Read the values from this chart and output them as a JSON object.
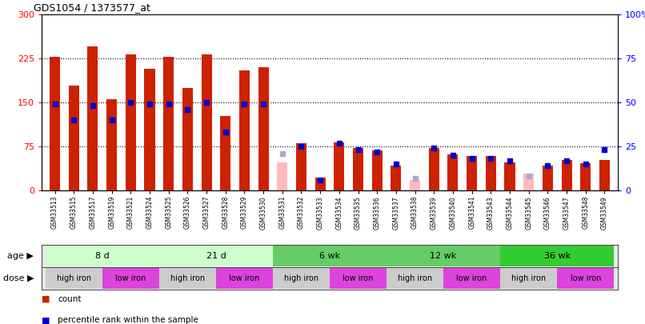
{
  "title": "GDS1054 / 1373577_at",
  "samples": [
    "GSM33513",
    "GSM33515",
    "GSM33517",
    "GSM33519",
    "GSM33521",
    "GSM33524",
    "GSM33525",
    "GSM33526",
    "GSM33527",
    "GSM33528",
    "GSM33529",
    "GSM33530",
    "GSM33531",
    "GSM33532",
    "GSM33533",
    "GSM33534",
    "GSM33535",
    "GSM33536",
    "GSM33537",
    "GSM33538",
    "GSM33539",
    "GSM33540",
    "GSM33541",
    "GSM33543",
    "GSM33544",
    "GSM33545",
    "GSM33546",
    "GSM33547",
    "GSM33548",
    "GSM33549"
  ],
  "count_values": [
    228,
    178,
    245,
    155,
    232,
    207,
    228,
    175,
    232,
    127,
    205,
    210,
    48,
    80,
    22,
    82,
    72,
    68,
    42,
    18,
    72,
    62,
    58,
    58,
    48,
    28,
    42,
    52,
    46,
    52
  ],
  "rank_values": [
    49,
    40,
    48,
    40,
    50,
    49,
    49,
    46,
    50,
    33,
    49,
    49,
    21,
    25,
    6,
    27,
    23,
    22,
    15,
    7,
    24,
    20,
    18,
    18,
    17,
    8,
    14,
    17,
    15,
    23
  ],
  "absent_count": [
    false,
    false,
    false,
    false,
    false,
    false,
    false,
    false,
    false,
    false,
    false,
    false,
    true,
    false,
    false,
    false,
    false,
    false,
    false,
    true,
    false,
    false,
    false,
    false,
    false,
    true,
    false,
    false,
    false,
    false
  ],
  "absent_rank": [
    false,
    false,
    false,
    false,
    false,
    false,
    false,
    false,
    false,
    false,
    false,
    false,
    true,
    false,
    false,
    false,
    false,
    false,
    false,
    true,
    false,
    false,
    false,
    false,
    false,
    true,
    false,
    false,
    false,
    false
  ],
  "age_groups": [
    {
      "label": "8 d",
      "start": 0,
      "end": 6,
      "color": "#ccffcc"
    },
    {
      "label": "21 d",
      "start": 6,
      "end": 12,
      "color": "#ccffcc"
    },
    {
      "label": "6 wk",
      "start": 12,
      "end": 18,
      "color": "#66cc66"
    },
    {
      "label": "12 wk",
      "start": 18,
      "end": 24,
      "color": "#66cc66"
    },
    {
      "label": "36 wk",
      "start": 24,
      "end": 30,
      "color": "#33cc33"
    }
  ],
  "dose_groups": [
    {
      "label": "high iron",
      "start": 0,
      "end": 3,
      "color": "#cccccc"
    },
    {
      "label": "low iron",
      "start": 3,
      "end": 6,
      "color": "#dd44dd"
    },
    {
      "label": "high iron",
      "start": 6,
      "end": 9,
      "color": "#cccccc"
    },
    {
      "label": "low iron",
      "start": 9,
      "end": 12,
      "color": "#dd44dd"
    },
    {
      "label": "high iron",
      "start": 12,
      "end": 15,
      "color": "#cccccc"
    },
    {
      "label": "low iron",
      "start": 15,
      "end": 18,
      "color": "#dd44dd"
    },
    {
      "label": "high iron",
      "start": 18,
      "end": 21,
      "color": "#cccccc"
    },
    {
      "label": "low iron",
      "start": 21,
      "end": 24,
      "color": "#dd44dd"
    },
    {
      "label": "high iron",
      "start": 24,
      "end": 27,
      "color": "#cccccc"
    },
    {
      "label": "low iron",
      "start": 27,
      "end": 30,
      "color": "#dd44dd"
    }
  ],
  "ylim_left": [
    0,
    300
  ],
  "ylim_right": [
    0,
    100
  ],
  "yticks_left": [
    0,
    75,
    150,
    225,
    300
  ],
  "yticks_right": [
    0,
    25,
    50,
    75,
    100
  ],
  "bar_color": "#cc2200",
  "absent_bar_color": "#ffbbbb",
  "rank_color": "#0000cc",
  "absent_rank_color": "#aaaacc"
}
